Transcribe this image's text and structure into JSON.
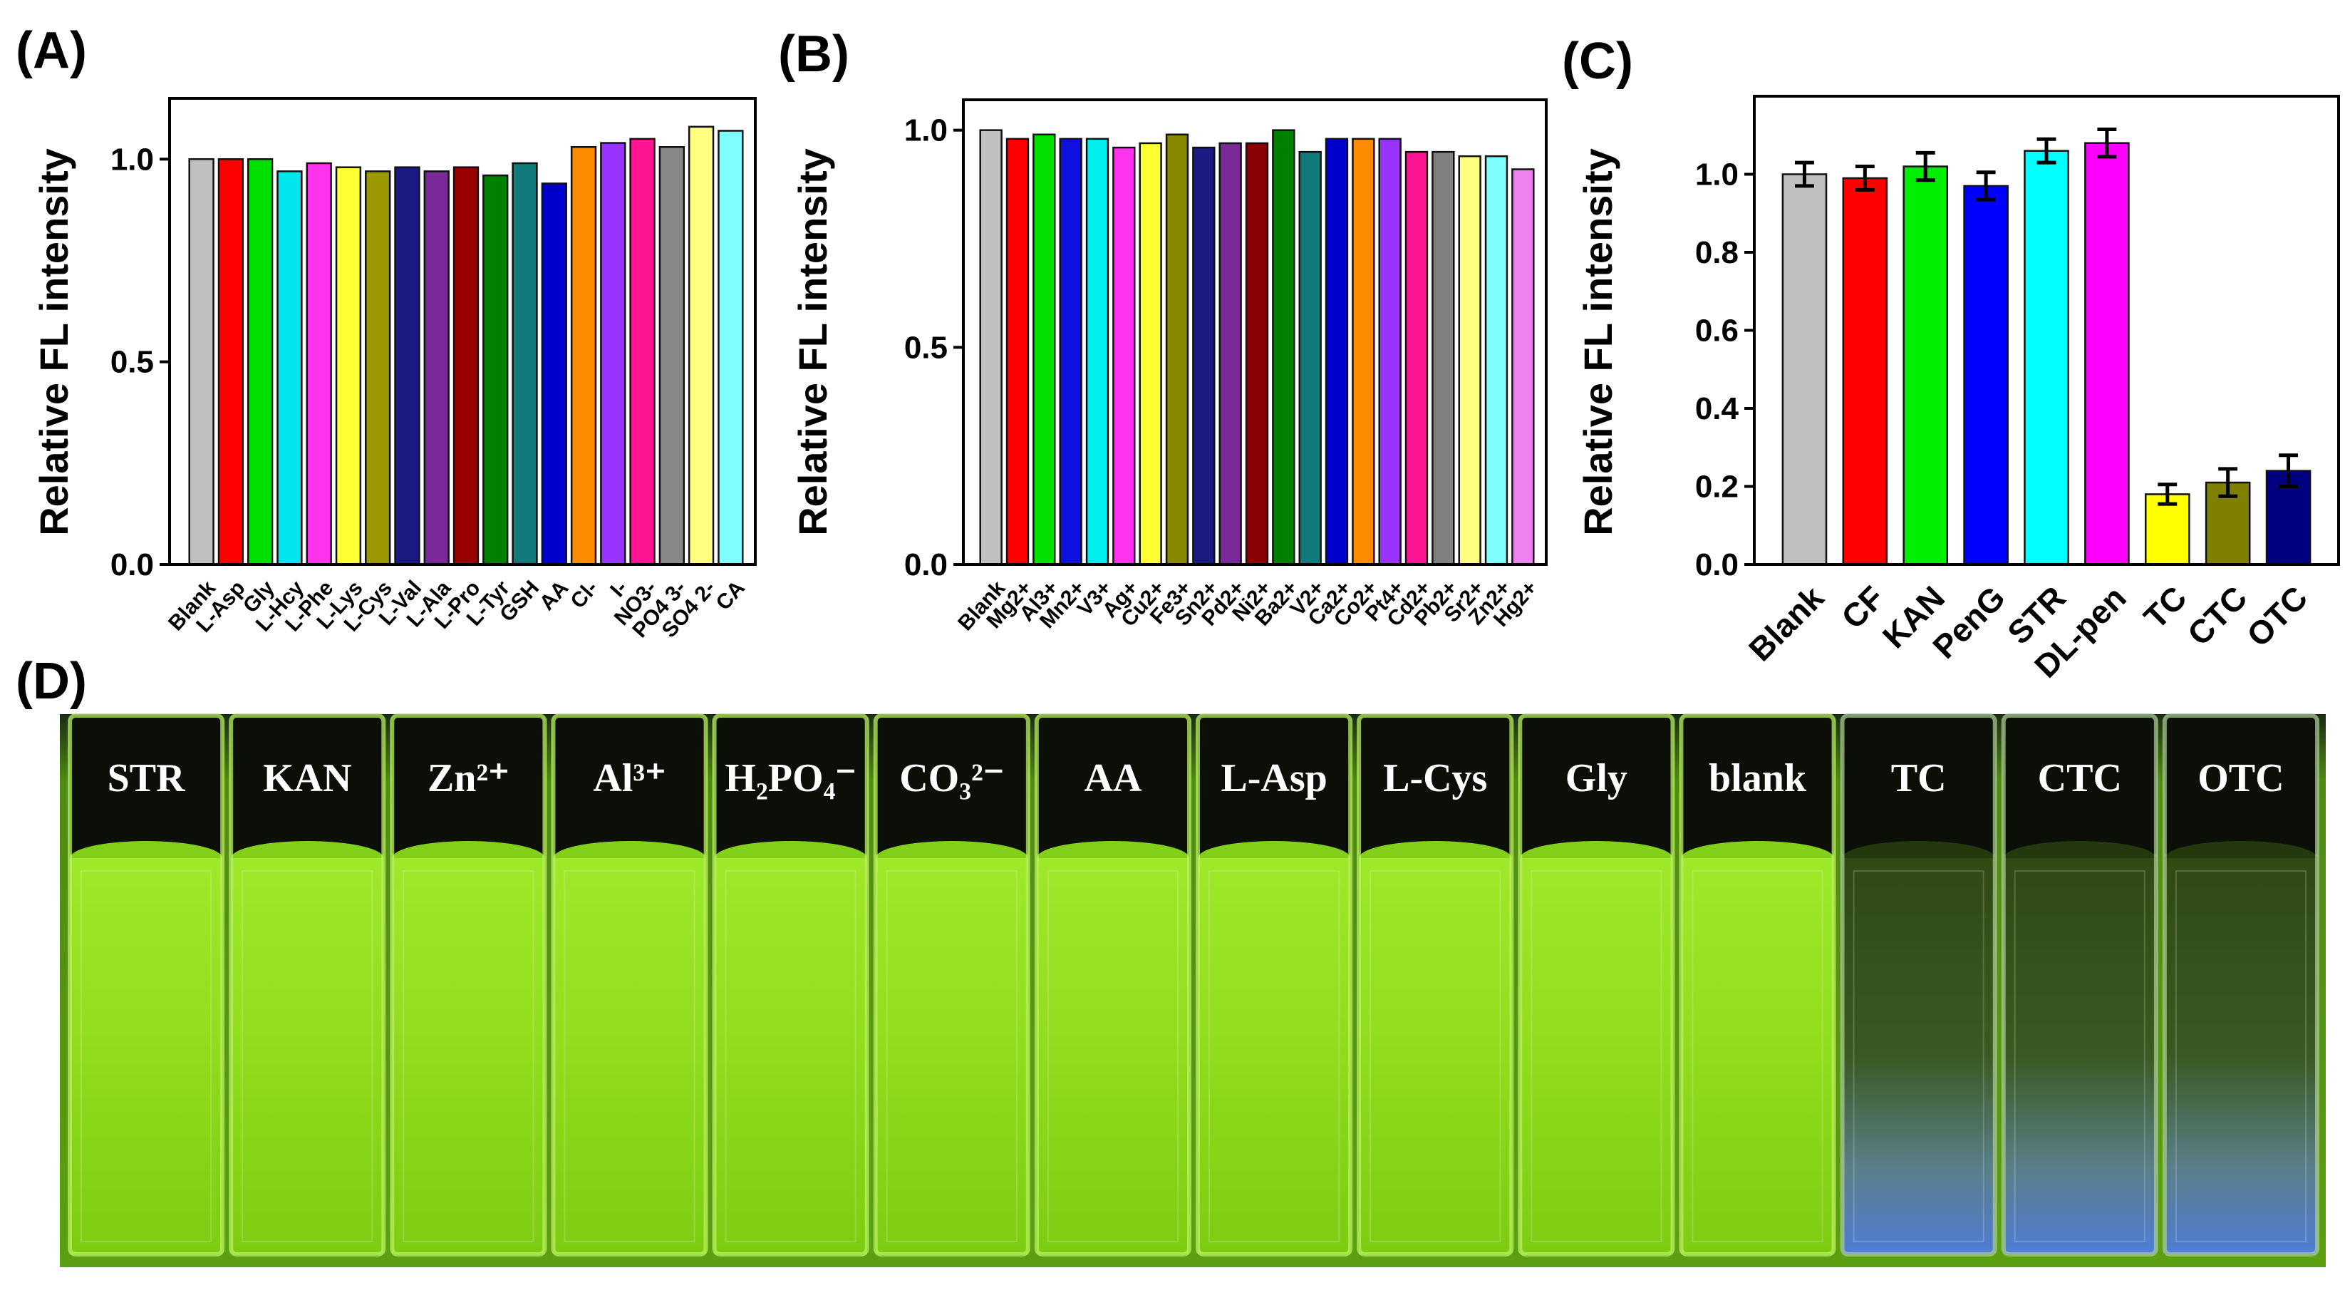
{
  "chart_data": [
    {
      "panel": "(A)",
      "type": "bar",
      "ylabel": "Relative FL intensity",
      "ylim": [
        0,
        1.15
      ],
      "yticks": [
        "0.0",
        "0.5",
        "1.0"
      ],
      "categories": [
        "Blank",
        "L-Asp",
        "Gly",
        "L-Hcy",
        "L-Phe",
        "L-Lys",
        "L-Cys",
        "L-Val",
        "L-Ala",
        "L-Pro",
        "L-Tyr",
        "GSH",
        "AA",
        "Cl-",
        "I-",
        "NO3-",
        "PO4 3-",
        "SO4 2-",
        "CA"
      ],
      "values": [
        1.0,
        1.0,
        1.0,
        0.97,
        0.99,
        0.98,
        0.97,
        0.98,
        0.97,
        0.98,
        0.96,
        0.99,
        0.94,
        1.03,
        1.04,
        1.05,
        1.03,
        1.08,
        1.07
      ],
      "colors": [
        "#c0c0c0",
        "#ff0000",
        "#00e000",
        "#00e5ee",
        "#ff33ee",
        "#ffff33",
        "#9a9a00",
        "#1a1a80",
        "#7b2a9a",
        "#990000",
        "#008000",
        "#117b7b",
        "#0000cc",
        "#ff8c00",
        "#9933ff",
        "#ff1493",
        "#888888",
        "#ffff80",
        "#80ffff"
      ]
    },
    {
      "panel": "(B)",
      "type": "bar",
      "ylabel": "Relative FL intensity",
      "ylim": [
        0,
        1.07
      ],
      "yticks": [
        "0.0",
        "0.5",
        "1.0"
      ],
      "categories": [
        "Blank",
        "Mg2+",
        "Al3+",
        "Mn2+",
        "V3+",
        "Ag+",
        "Cu2+",
        "Fe3+",
        "Sn2+",
        "Pd2+",
        "Ni2+",
        "Ba2+",
        "V2+",
        "Ca2+",
        "Co2+",
        "Pt4+",
        "Cd2+",
        "Pb2+",
        "Sr2+",
        "Zn2+",
        "Hg2+"
      ],
      "values": [
        1.0,
        0.98,
        0.99,
        0.98,
        0.98,
        0.96,
        0.97,
        0.99,
        0.96,
        0.97,
        0.97,
        1.0,
        0.95,
        0.98,
        0.98,
        0.98,
        0.95,
        0.95,
        0.94,
        0.94,
        0.91
      ],
      "colors": [
        "#c0c0c0",
        "#ff0000",
        "#00e000",
        "#1010e0",
        "#00eeee",
        "#ff33ee",
        "#ffff33",
        "#888800",
        "#1a1a80",
        "#7b2a9a",
        "#8b0000",
        "#008000",
        "#117b7b",
        "#0000cc",
        "#ff8c00",
        "#9933ff",
        "#ff1493",
        "#808080",
        "#ffff80",
        "#80ffff",
        "#ee82ee"
      ]
    },
    {
      "panel": "(C)",
      "type": "bar",
      "ylabel": "Relative FL intensity",
      "ylim": [
        0,
        1.2
      ],
      "yticks": [
        "0.0",
        "0.2",
        "0.4",
        "0.6",
        "0.8",
        "1.0"
      ],
      "categories": [
        "Blank",
        "CF",
        "KAN",
        "PenG",
        "STR",
        "DL-pen",
        "TC",
        "CTC",
        "OTC"
      ],
      "values": [
        1.0,
        0.99,
        1.02,
        0.97,
        1.06,
        1.08,
        0.18,
        0.21,
        0.24
      ],
      "errors": [
        0.03,
        0.03,
        0.035,
        0.035,
        0.03,
        0.035,
        0.025,
        0.035,
        0.04
      ],
      "colors": [
        "#c0c0c0",
        "#ff0000",
        "#00ee00",
        "#0000ff",
        "#00ffff",
        "#ff00ff",
        "#ffff00",
        "#808000",
        "#000080"
      ]
    }
  ],
  "photo": {
    "panel": "(D)",
    "tubes": [
      {
        "label": "STR",
        "color": "green"
      },
      {
        "label": "KAN",
        "color": "green"
      },
      {
        "label": "Zn²⁺",
        "color": "green"
      },
      {
        "label": "Al³⁺",
        "color": "green"
      },
      {
        "label": "H₂PO₄⁻",
        "color": "green"
      },
      {
        "label": "CO₃²⁻",
        "color": "green"
      },
      {
        "label": "AA",
        "color": "green"
      },
      {
        "label": "L-Asp",
        "color": "green"
      },
      {
        "label": "L-Cys",
        "color": "green"
      },
      {
        "label": "Gly",
        "color": "green"
      },
      {
        "label": "blank",
        "color": "green"
      },
      {
        "label": "TC",
        "color": "blue"
      },
      {
        "label": "CTC",
        "color": "blue"
      },
      {
        "label": "OTC",
        "color": "blue"
      }
    ]
  }
}
